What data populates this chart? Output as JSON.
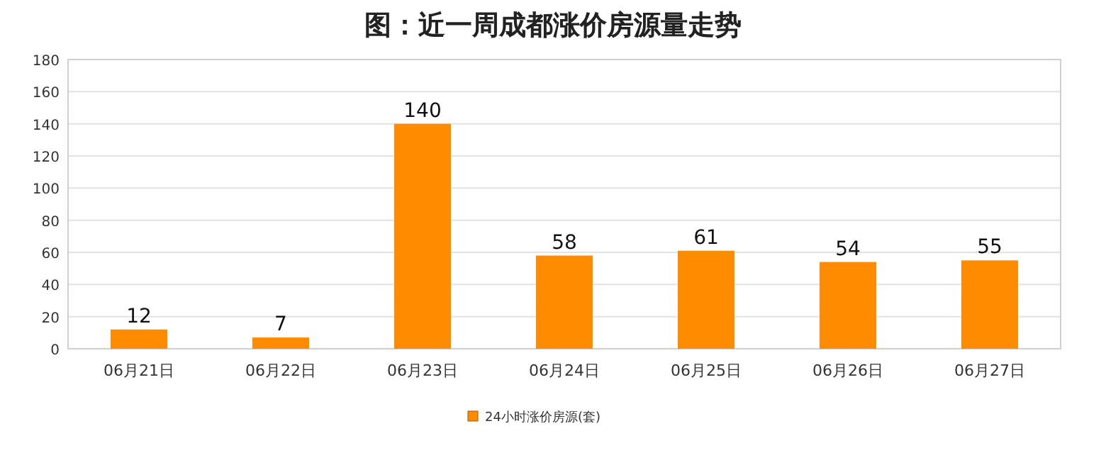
{
  "chart_data": {
    "type": "bar",
    "title": "图：近一周成都涨价房源量走势",
    "categories": [
      "06月21日",
      "06月22日",
      "06月23日",
      "06月24日",
      "06月25日",
      "06月26日",
      "06月27日"
    ],
    "series": [
      {
        "name": "24小时涨价房源(套)",
        "color": "#ff8c00",
        "values": [
          12,
          7,
          140,
          58,
          61,
          54,
          55
        ]
      }
    ],
    "ylim": [
      0,
      180
    ],
    "yticks": [
      0,
      20,
      40,
      60,
      80,
      100,
      120,
      140,
      160,
      180
    ],
    "grid": "y",
    "legend": "bottom",
    "data_labels": true
  }
}
